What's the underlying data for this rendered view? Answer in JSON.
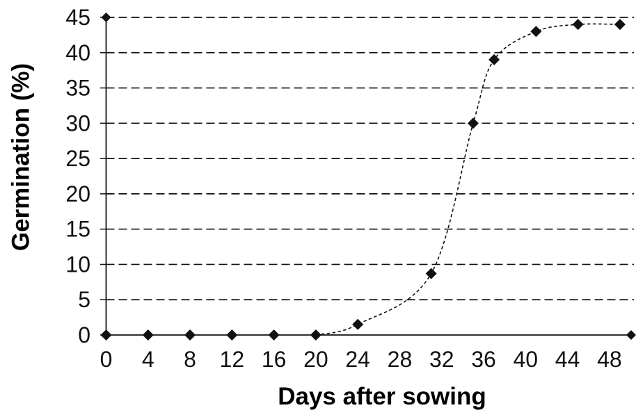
{
  "figure": {
    "background": "#ffffff",
    "ink_color": "#111111"
  },
  "chart_data": {
    "type": "scatter",
    "title": "",
    "xlabel": "Days after sowing",
    "ylabel": "Germination (%)",
    "x": [
      0,
      4,
      8,
      12,
      16,
      20,
      24,
      31,
      35,
      37,
      41,
      45,
      49
    ],
    "y": [
      0,
      0,
      0,
      0,
      0,
      0,
      1.5,
      8.7,
      30,
      39,
      43,
      44,
      44
    ],
    "xlim": [
      0,
      50
    ],
    "ylim": [
      0,
      45
    ],
    "xticks": [
      0,
      4,
      8,
      12,
      16,
      20,
      24,
      28,
      32,
      36,
      40,
      44,
      48
    ],
    "yticks": [
      0,
      5,
      10,
      15,
      20,
      25,
      30,
      35,
      40,
      45
    ],
    "grid": "horizontal-dashed",
    "legend": "none",
    "marker": "filled-diamond",
    "line_style": "dashed-curve",
    "axis_end_marker": "diamond"
  }
}
